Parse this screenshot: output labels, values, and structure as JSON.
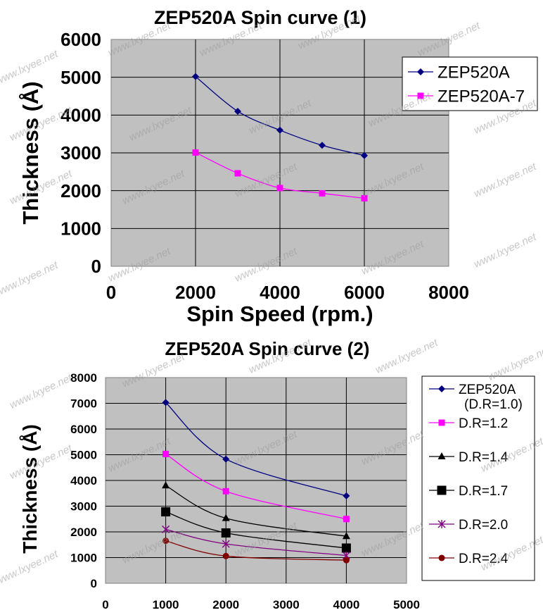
{
  "chart_data": [
    {
      "type": "line",
      "title": "ZEP520A Spin curve (1)",
      "xlabel": "Spin Speed (rpm.)",
      "ylabel": "Thickness (Å)",
      "xlim": [
        0,
        8000
      ],
      "ylim": [
        0,
        6000
      ],
      "xticks": [
        "0",
        "2000",
        "4000",
        "6000",
        "8000"
      ],
      "yticks": [
        "0",
        "1000",
        "2000",
        "3000",
        "4000",
        "5000",
        "6000"
      ],
      "grid": true,
      "plot_background": "#c0c0c0",
      "legend_position": "top-right",
      "series": [
        {
          "name": "ZEP520A",
          "color": "#000080",
          "marker": "diamond",
          "x": [
            2000,
            3000,
            4000,
            5000,
            6000
          ],
          "y": [
            5020,
            4100,
            3600,
            3200,
            2930
          ]
        },
        {
          "name": "ZEP520A-7",
          "color": "#ff00ff",
          "marker": "square",
          "x": [
            2000,
            3000,
            4000,
            5000,
            6000
          ],
          "y": [
            3010,
            2460,
            2070,
            1930,
            1800
          ]
        }
      ]
    },
    {
      "type": "line",
      "title": "ZEP520A Spin curve (2)",
      "xlabel": "",
      "ylabel": "Thickness (Å)",
      "xlim": [
        0,
        5000
      ],
      "ylim": [
        0,
        8000
      ],
      "xticks": [
        "0",
        "1000",
        "2000",
        "3000",
        "4000",
        "5000"
      ],
      "yticks": [
        "0",
        "1000",
        "2000",
        "3000",
        "4000",
        "5000",
        "6000",
        "7000",
        "8000"
      ],
      "grid": true,
      "plot_background": "#c0c0c0",
      "legend_position": "right",
      "series": [
        {
          "name": "ZEP520A",
          "name_line2": "(D.R=1.0)",
          "color": "#000080",
          "marker": "diamond",
          "x": [
            1000,
            2000,
            4000
          ],
          "y": [
            7030,
            4830,
            3400
          ]
        },
        {
          "name": "D.R=1.2",
          "color": "#ff00ff",
          "marker": "square",
          "x": [
            1000,
            2000,
            4000
          ],
          "y": [
            5030,
            3580,
            2500
          ]
        },
        {
          "name": "D.R=1.4",
          "color": "#000000",
          "marker": "triangle",
          "x": [
            1000,
            2000,
            4000
          ],
          "y": [
            3800,
            2530,
            1830
          ]
        },
        {
          "name": "D.R=1.7",
          "color": "#000000",
          "marker": "bigsquare",
          "x": [
            1000,
            2000,
            4000
          ],
          "y": [
            2780,
            1960,
            1370
          ]
        },
        {
          "name": "D.R=2.0",
          "color": "#800080",
          "marker": "asterisk",
          "x": [
            1000,
            2000,
            4000
          ],
          "y": [
            2100,
            1530,
            1080
          ]
        },
        {
          "name": "D.R=2.4",
          "color": "#800000",
          "marker": "circle",
          "x": [
            1000,
            2000,
            4000
          ],
          "y": [
            1650,
            1060,
            900
          ]
        }
      ]
    }
  ],
  "watermark": "www.lxyee.net"
}
